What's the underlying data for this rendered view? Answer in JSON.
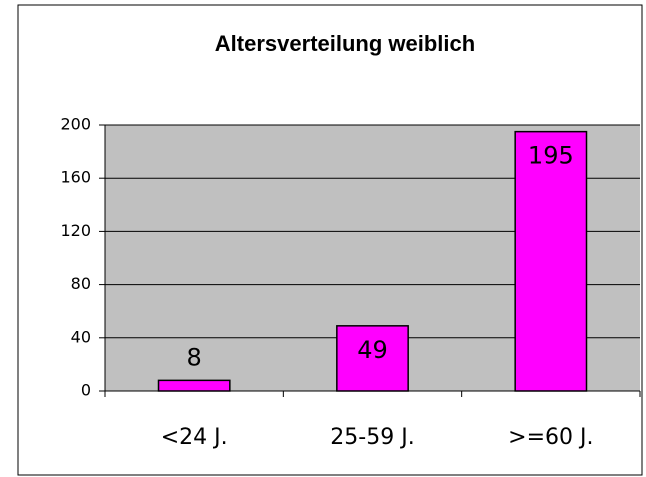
{
  "chart_data": {
    "type": "bar",
    "title": "Altersverteilung weiblich",
    "categories": [
      "<24 J.",
      "25-59 J.",
      ">=60 J."
    ],
    "values": [
      8,
      49,
      195
    ],
    "color": "#ff00ff",
    "ylim": [
      0,
      200
    ],
    "yticks": [
      0,
      40,
      80,
      120,
      160,
      200
    ],
    "grid": true
  }
}
